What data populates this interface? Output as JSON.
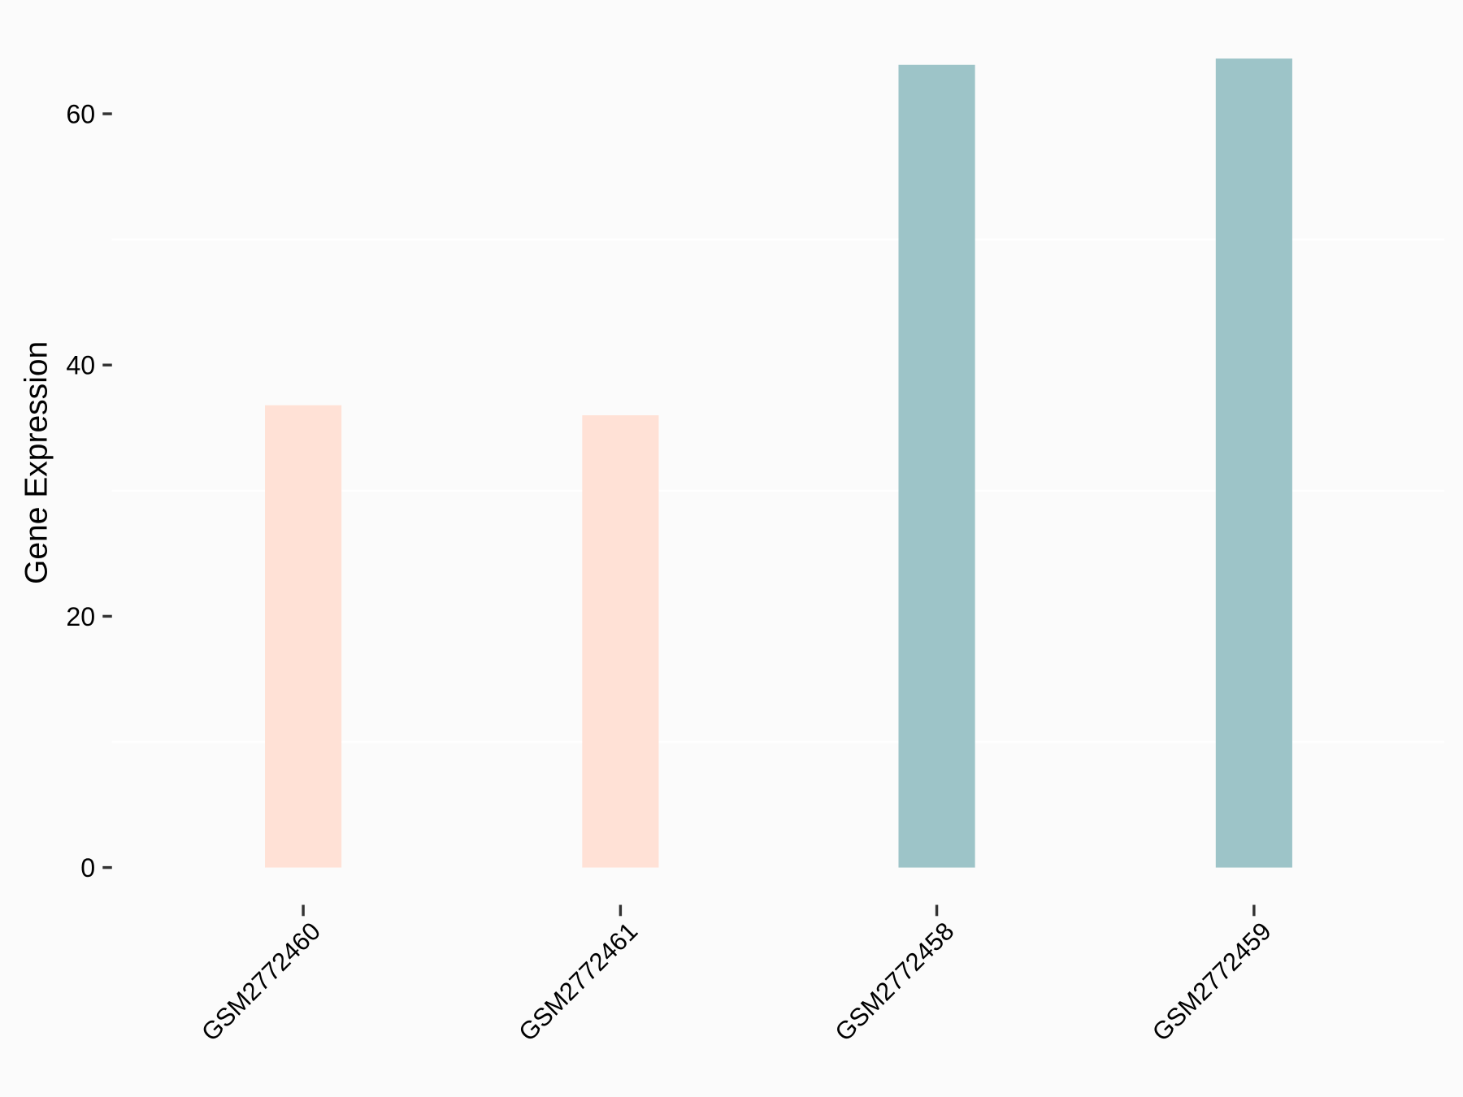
{
  "chart_data": {
    "type": "bar",
    "title": "",
    "xlabel": "",
    "ylabel": "Gene Expression",
    "categories": [
      "GSM2772460",
      "GSM2772461",
      "GSM2772458",
      "GSM2772459"
    ],
    "values": [
      36.8,
      36.0,
      63.9,
      64.4
    ],
    "colors": [
      "#ffe1d6",
      "#ffe1d6",
      "#9dc4c8",
      "#9dc4c8"
    ],
    "ylim": [
      0,
      60
    ],
    "yticks": [
      0,
      20,
      40,
      60
    ],
    "yticklabels": [
      "0",
      "20",
      "40",
      "60"
    ],
    "minor_grid": [
      10,
      30,
      50
    ],
    "grid": true,
    "legend": "none",
    "background": "#fbfbfb"
  }
}
